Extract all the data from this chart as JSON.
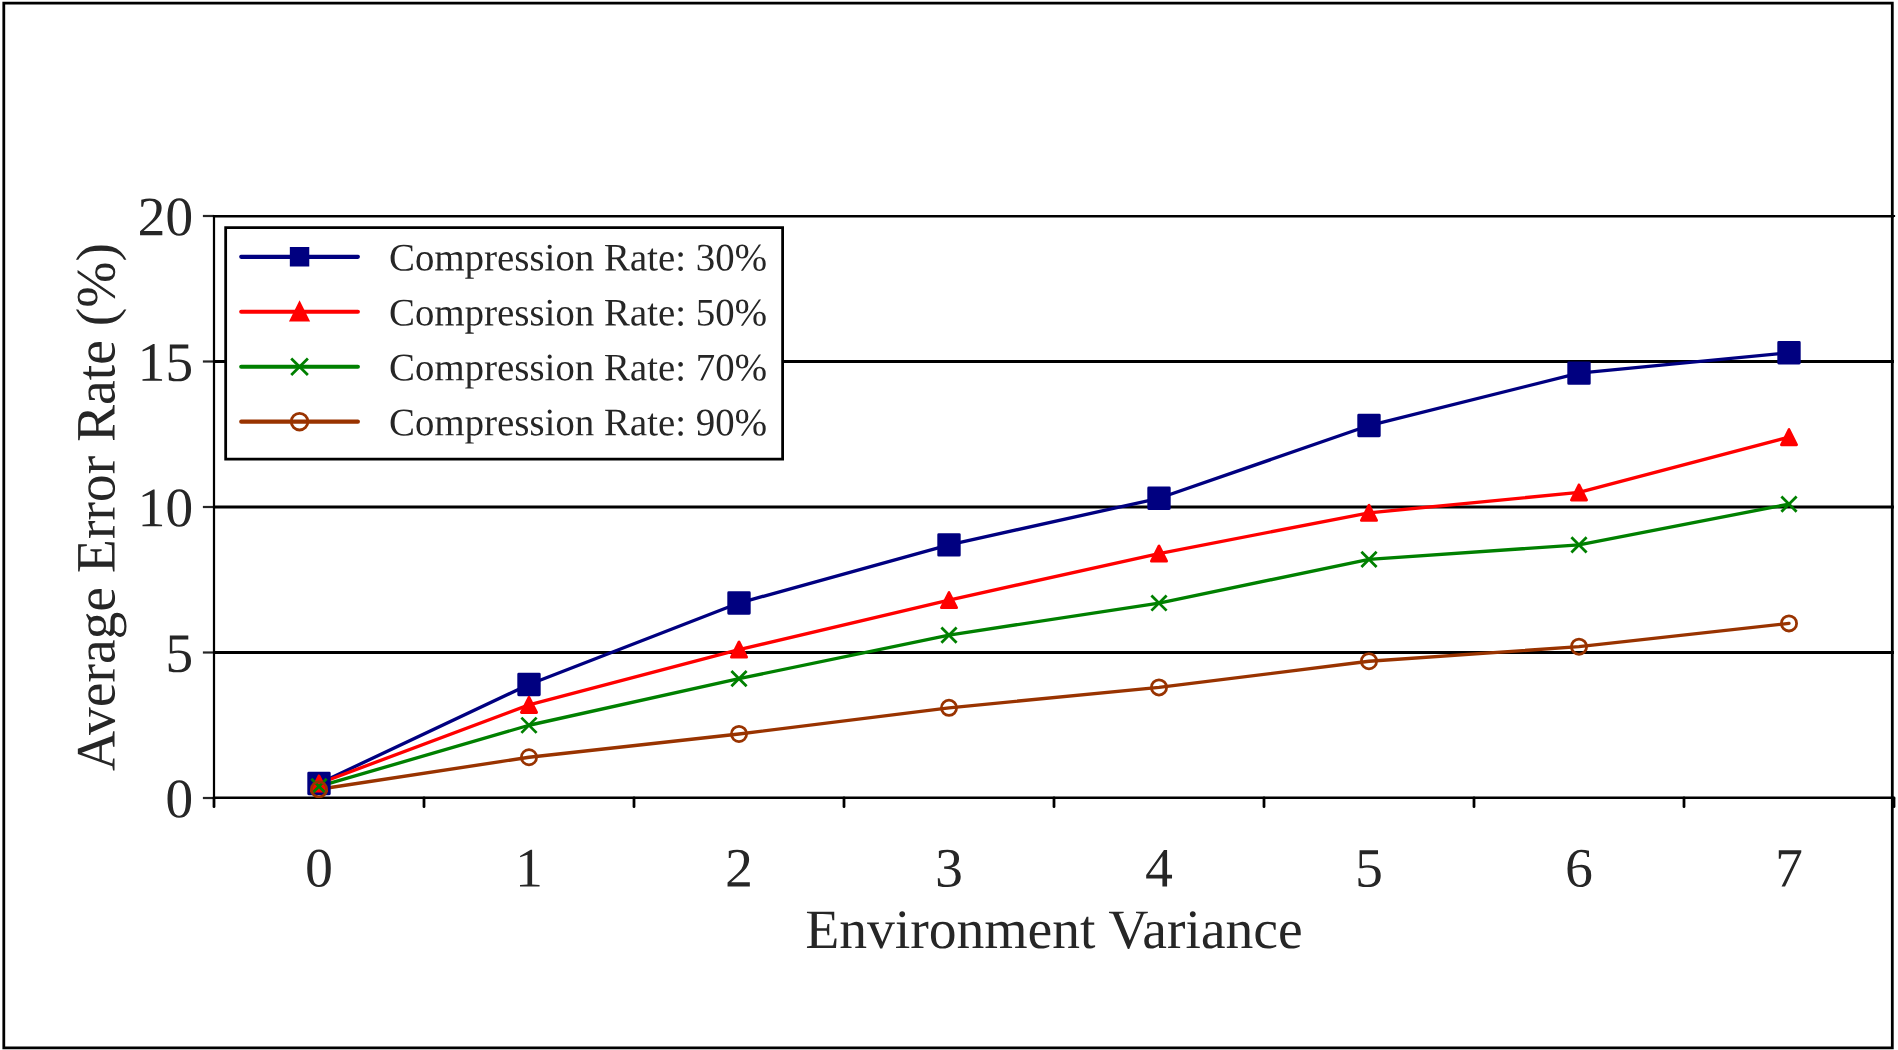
{
  "chart_data": {
    "type": "line",
    "xlabel": "Environment Variance",
    "ylabel": "Average Error Rate (%)",
    "categories": [
      "0",
      "1",
      "2",
      "3",
      "4",
      "5",
      "6",
      "7"
    ],
    "series": [
      {
        "name": "Compression Rate: 30%",
        "color": "#000080",
        "marker": "square",
        "values": [
          0.5,
          3.9,
          6.7,
          8.7,
          10.3,
          12.8,
          14.6,
          15.3
        ]
      },
      {
        "name": "Compression Rate: 50%",
        "color": "#ff0000",
        "marker": "triangle",
        "values": [
          0.5,
          3.2,
          5.1,
          6.8,
          8.4,
          9.8,
          10.5,
          12.4
        ]
      },
      {
        "name": "Compression Rate: 70%",
        "color": "#008000",
        "marker": "cross",
        "values": [
          0.4,
          2.5,
          4.1,
          5.6,
          6.7,
          8.2,
          8.7,
          10.1
        ]
      },
      {
        "name": "Compression Rate: 90%",
        "color": "#993300",
        "marker": "circle",
        "values": [
          0.3,
          1.4,
          2.2,
          3.1,
          3.8,
          4.7,
          5.2,
          6.0
        ]
      }
    ],
    "ylim": [
      0,
      20
    ],
    "yticks": [
      0,
      5,
      10,
      15,
      20
    ],
    "grid": "y",
    "legend": "top left",
    "line_style": "solid"
  }
}
